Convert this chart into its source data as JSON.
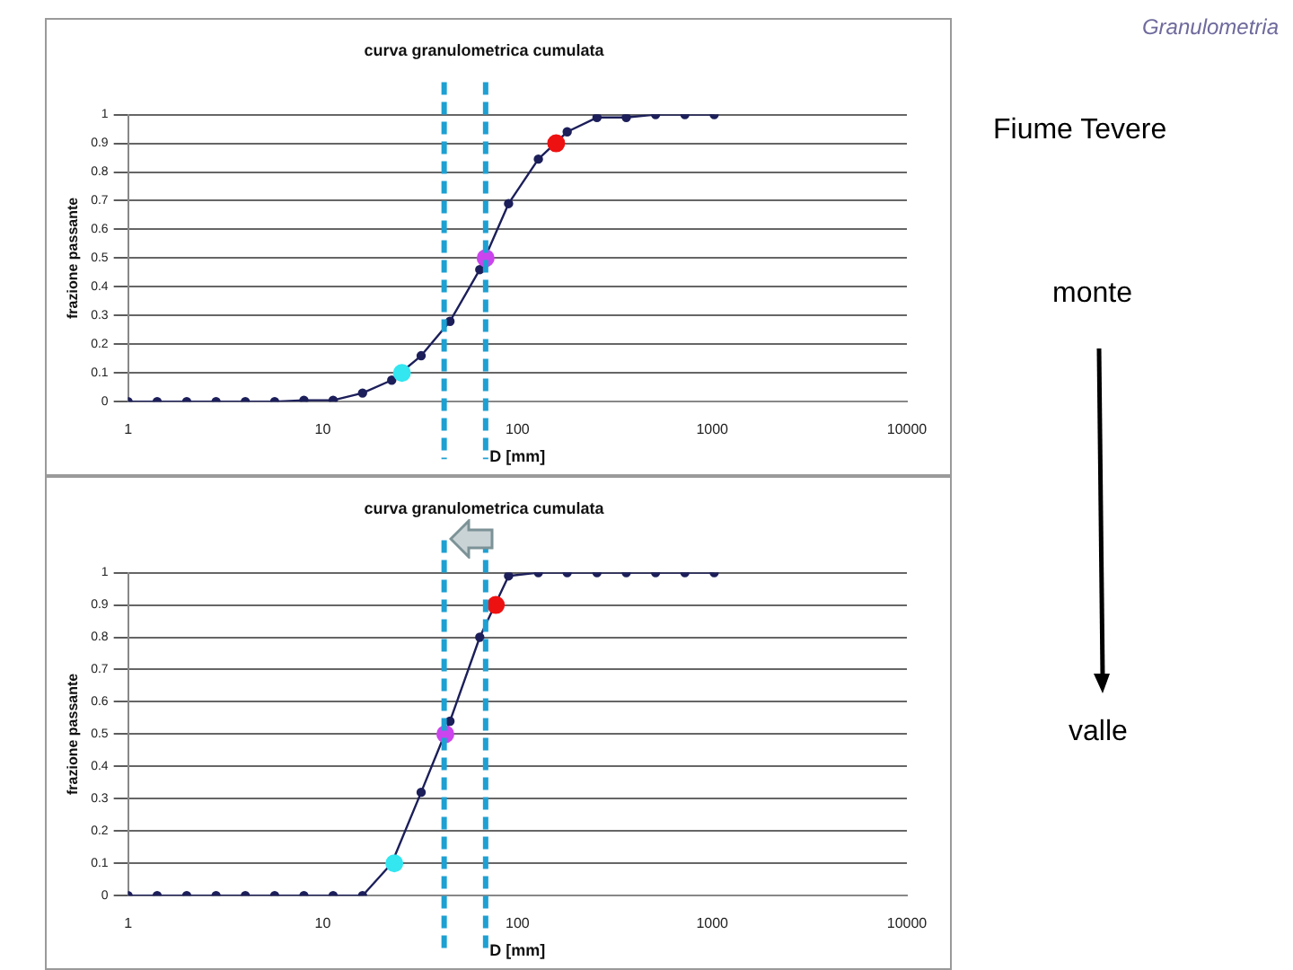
{
  "chart_data": [
    {
      "type": "line",
      "title": "curva granulometrica cumulata",
      "xlabel": "D [mm]",
      "ylabel": "frazione passante",
      "log": "x",
      "xlim": [
        1,
        10000
      ],
      "xticks": [
        1,
        10,
        100,
        1000,
        10000
      ],
      "ylim": [
        0,
        1
      ],
      "yticks": [
        0,
        0.1,
        0.2,
        0.3,
        0.4,
        0.5,
        0.6,
        0.7,
        0.8,
        0.9,
        1
      ],
      "grid": "y",
      "legend": false,
      "marker": "circle",
      "series": [
        {
          "color": "#1c1f5a",
          "x": [
            1,
            1.41,
            2,
            2.83,
            4,
            5.66,
            8,
            11.3,
            16,
            22.6,
            32,
            45,
            64,
            90,
            128,
            180,
            256,
            362,
            512,
            724,
            1024
          ],
          "values": [
            0,
            0,
            0,
            0,
            0,
            0,
            0.005,
            0.005,
            0.03,
            0.075,
            0.16,
            0.28,
            0.46,
            0.69,
            0.845,
            0.94,
            0.99,
            0.99,
            1,
            1,
            1
          ]
        },
        {
          "type": "scatter",
          "color": "#33e6f0",
          "x": [
            25.5
          ],
          "values": [
            0.1
          ]
        },
        {
          "type": "scatter",
          "color": "#cc44ee",
          "x": [
            68.6
          ],
          "values": [
            0.5
          ]
        },
        {
          "type": "scatter",
          "color": "#ee1111",
          "x": [
            158
          ],
          "values": [
            0.9
          ]
        }
      ],
      "ref_lines": [
        {
          "axis": "x",
          "value": 42,
          "color": "#1ea0d2",
          "line_style": "dashed"
        },
        {
          "axis": "x",
          "value": 68.6,
          "color": "#1ea0d2",
          "line_style": "dashed"
        }
      ]
    },
    {
      "type": "line",
      "title": "curva granulometrica cumulata",
      "xlabel": "D [mm]",
      "ylabel": "frazione passante",
      "log": "x",
      "xlim": [
        1,
        10000
      ],
      "xticks": [
        1,
        10,
        100,
        1000,
        10000
      ],
      "ylim": [
        0,
        1
      ],
      "yticks": [
        0,
        0.1,
        0.2,
        0.3,
        0.4,
        0.5,
        0.6,
        0.7,
        0.8,
        0.9,
        1
      ],
      "grid": "y",
      "legend": false,
      "marker": "circle",
      "series": [
        {
          "color": "#1c1f5a",
          "x": [
            1,
            1.41,
            2,
            2.83,
            4,
            5.66,
            8,
            11.3,
            16,
            22.6,
            32,
            45,
            64,
            90,
            128,
            180,
            256,
            362,
            512,
            724,
            1024
          ],
          "values": [
            0,
            0,
            0,
            0,
            0,
            0,
            0,
            0,
            0,
            0.1,
            0.32,
            0.54,
            0.8,
            0.99,
            1,
            1,
            1,
            1,
            1,
            1,
            1
          ]
        },
        {
          "type": "scatter",
          "color": "#33e6f0",
          "x": [
            23.3
          ],
          "values": [
            0.1
          ]
        },
        {
          "type": "scatter",
          "color": "#cc44ee",
          "x": [
            42.6
          ],
          "values": [
            0.5
          ]
        },
        {
          "type": "scatter",
          "color": "#ee1111",
          "x": [
            77.4
          ],
          "values": [
            0.9
          ]
        }
      ],
      "ref_lines": [
        {
          "axis": "x",
          "value": 42,
          "color": "#1ea0d2",
          "line_style": "dashed"
        },
        {
          "axis": "x",
          "value": 68.6,
          "color": "#1ea0d2",
          "line_style": "dashed"
        }
      ]
    },
    {
      "type": "other",
      "annotations": [
        "Granulometria",
        "Fiume Tevere",
        "monte",
        "valle"
      ]
    }
  ]
}
